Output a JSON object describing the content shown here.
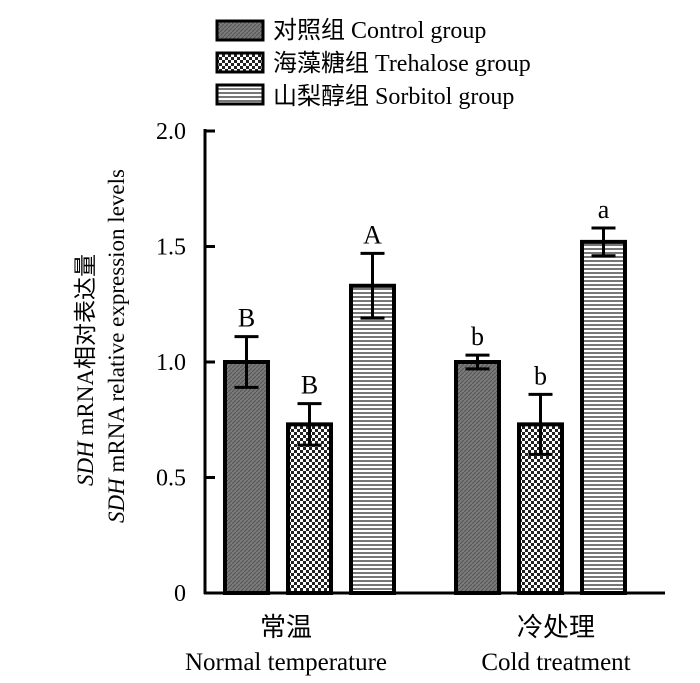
{
  "chart_data": {
    "type": "bar",
    "title": "",
    "ylabel_line1": "SDH mRNA相对表达量",
    "ylabel_line1_italic": "SDH",
    "ylabel_line1_rest": " mRNA相对表达量",
    "ylabel_line2": "SDH mRNA relative expression levels",
    "ylabel_line2_italic": "SDH",
    "ylabel_line2_rest": " mRNA relative expression levels",
    "ylim": [
      0,
      2.0
    ],
    "yticks": [
      0,
      0.5,
      1.0,
      1.5,
      2.0
    ],
    "ytick_labels": [
      "0",
      "0.5",
      "1.0",
      "1.5",
      "2.0"
    ],
    "categories": [
      {
        "zh": "常温",
        "en": "Normal temperature"
      },
      {
        "zh": "冷处理",
        "en": "Cold treatment"
      }
    ],
    "series": [
      {
        "name": "对照组 Control group",
        "values": [
          1.0,
          1.0
        ],
        "errors": [
          0.11,
          0.03
        ],
        "letters": [
          "B",
          "b"
        ],
        "pattern": "diag",
        "color": "#808080"
      },
      {
        "name": "海藻糖组 Trehalose group",
        "values": [
          0.73,
          0.73
        ],
        "errors": [
          0.09,
          0.13
        ],
        "letters": [
          "B",
          "b"
        ],
        "pattern": "checker",
        "color": "#a0a0a0"
      },
      {
        "name": "山梨醇组 Sorbitol group",
        "values": [
          1.33,
          1.52
        ],
        "errors": [
          0.14,
          0.06
        ],
        "letters": [
          "A",
          "a"
        ],
        "pattern": "hlines",
        "color": "#c0c0c0"
      }
    ],
    "legend_position": "top"
  }
}
